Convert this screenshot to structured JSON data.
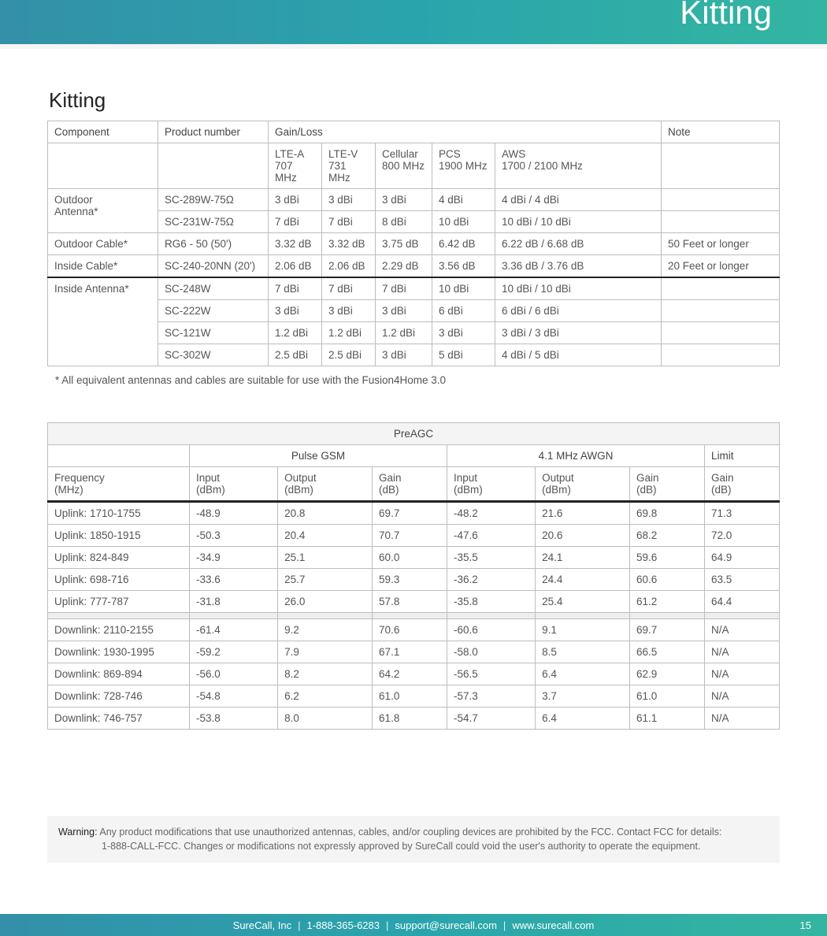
{
  "header": {
    "title": "Kitting"
  },
  "section": {
    "title": "Kitting"
  },
  "kitting_table": {
    "headers": {
      "component": "Component",
      "product_number": "Product number",
      "gain_loss": "Gain/Loss",
      "note": "Note"
    },
    "band_headers": {
      "lte_a": {
        "l1": "LTE-A",
        "l2": "707 MHz"
      },
      "lte_v": {
        "l1": "LTE-V",
        "l2": "731 MHz"
      },
      "cellular": {
        "l1": "Cellular",
        "l2": "800 MHz"
      },
      "pcs": {
        "l1": "PCS",
        "l2": "1900 MHz"
      },
      "aws": {
        "l1": "AWS",
        "l2": "1700 / 2100 MHz"
      }
    },
    "rows": [
      {
        "component": "Outdoor\nAntenna*",
        "rowspan": 2,
        "product": "SC-289W-75Ω",
        "v": [
          "3 dBi",
          "3 dBi",
          "3 dBi",
          "4 dBi",
          "4 dBi / 4 dBi"
        ],
        "note": ""
      },
      {
        "product": "SC-231W-75Ω",
        "v": [
          "7 dBi",
          "7 dBi",
          "8 dBi",
          "10 dBi",
          "10 dBi / 10 dBi"
        ],
        "note": ""
      },
      {
        "component": "Outdoor Cable*",
        "rowspan": 1,
        "product": "RG6 - 50 (50')",
        "v": [
          "3.32 dB",
          "3.32 dB",
          "3.75 dB",
          "6.42 dB",
          "6.22 dB / 6.68 dB"
        ],
        "note": "50 Feet or longer"
      },
      {
        "component": "Inside Cable*",
        "rowspan": 1,
        "product": "SC-240-20NN (20')",
        "v": [
          "2.06 dB",
          "2.06 dB",
          "2.29 dB",
          "3.56 dB",
          "3.36 dB / 3.76 dB"
        ],
        "note": "20 Feet or longer",
        "thick": true
      },
      {
        "component": "Inside Antenna*",
        "rowspan": 4,
        "product": "SC-248W",
        "v": [
          "7 dBi",
          "7 dBi",
          "7 dBi",
          "10 dBi",
          "10 dBi / 10 dBi"
        ],
        "note": ""
      },
      {
        "product": "SC-222W",
        "v": [
          "3 dBi",
          "3 dBi",
          "3 dBi",
          "6 dBi",
          "6 dBi / 6 dBi"
        ],
        "note": ""
      },
      {
        "product": "SC-121W",
        "v": [
          "1.2 dBi",
          "1.2 dBi",
          "1.2 dBi",
          "3 dBi",
          "3 dBi / 3 dBi"
        ],
        "note": ""
      },
      {
        "product": "SC-302W",
        "v": [
          "2.5 dBi",
          "2.5 dBi",
          "3 dBi",
          "5 dBi",
          "4 dBi / 5 dBi"
        ],
        "note": ""
      }
    ],
    "footnote": "* All equivalent antennas and cables are suitable for use with the Fusion4Home 3.0"
  },
  "preagc_table": {
    "title": "PreAGC",
    "groups": {
      "pulse": "Pulse GSM",
      "awgn": "4.1 MHz AWGN",
      "limit": "Limit"
    },
    "cols": {
      "freq": {
        "l1": "Frequency",
        "l2": "(MHz)"
      },
      "p_in": {
        "l1": "Input",
        "l2": "(dBm)"
      },
      "p_out": {
        "l1": "Output",
        "l2": "(dBm)"
      },
      "p_gain": {
        "l1": "Gain",
        "l2": "(dB)"
      },
      "a_in": {
        "l1": "Input",
        "l2": "(dBm)"
      },
      "a_out": {
        "l1": "Output",
        "l2": "(dBm)"
      },
      "a_gain": {
        "l1": "Gain",
        "l2": "(dB)"
      },
      "limit": {
        "l1": "Gain",
        "l2": "(dB)"
      }
    },
    "uplink": [
      {
        "f": "Uplink: 1710-1755",
        "v": [
          "-48.9",
          "20.8",
          "69.7",
          "-48.2",
          "21.6",
          "69.8",
          "71.3"
        ]
      },
      {
        "f": "Uplink: 1850-1915",
        "v": [
          "-50.3",
          "20.4",
          "70.7",
          "-47.6",
          "20.6",
          "68.2",
          "72.0"
        ]
      },
      {
        "f": "Uplink: 824-849",
        "v": [
          "-34.9",
          "25.1",
          "60.0",
          "-35.5",
          "24.1",
          "59.6",
          "64.9"
        ]
      },
      {
        "f": "Uplink: 698-716",
        "v": [
          "-33.6",
          "25.7",
          "59.3",
          "-36.2",
          "24.4",
          "60.6",
          "63.5"
        ]
      },
      {
        "f": "Uplink: 777-787",
        "v": [
          "-31.8",
          "26.0",
          "57.8",
          "-35.8",
          "25.4",
          "61.2",
          "64.4"
        ]
      }
    ],
    "downlink": [
      {
        "f": "Downlink: 2110-2155",
        "v": [
          "-61.4",
          "9.2",
          "70.6",
          "-60.6",
          "9.1",
          "69.7",
          "N/A"
        ]
      },
      {
        "f": "Downlink: 1930-1995",
        "v": [
          "-59.2",
          "7.9",
          "67.1",
          "-58.0",
          "8.5",
          "66.5",
          "N/A"
        ]
      },
      {
        "f": "Downlink: 869-894",
        "v": [
          "-56.0",
          "8.2",
          "64.2",
          "-56.5",
          "6.4",
          "62.9",
          "N/A"
        ]
      },
      {
        "f": "Downlink: 728-746",
        "v": [
          "-54.8",
          "6.2",
          "61.0",
          "-57.3",
          "3.7",
          "61.0",
          "N/A"
        ]
      },
      {
        "f": "Downlink: 746-757",
        "v": [
          "-53.8",
          "8.0",
          "61.8",
          "-54.7",
          "6.4",
          "61.1",
          "N/A"
        ]
      }
    ]
  },
  "warning": {
    "label": "Warning:",
    "line1": "Any product modifications that use unauthorized antennas, cables, and/or coupling devices are prohibited by the FCC. Contact FCC for details:",
    "line2": "1-888-CALL-FCC. Changes or modifications not expressly approved by SureCall could void the user's authority to operate the equipment."
  },
  "footer": {
    "company": "SureCall, Inc",
    "phone": "1-888-365-6283",
    "email": "support@surecall.com",
    "url": "www.surecall.com",
    "page": "15"
  },
  "style": {
    "header_gradient": [
      "#3390a8",
      "#2aa4ac",
      "#34b5a1"
    ],
    "footer_gradient": [
      "#3390a8",
      "#2aa4ac",
      "#34b5a1"
    ],
    "border_color": "#bdbdbd",
    "text_color": "#555",
    "thick_border": "#222222",
    "gray_bg": "#f4f4f4"
  }
}
